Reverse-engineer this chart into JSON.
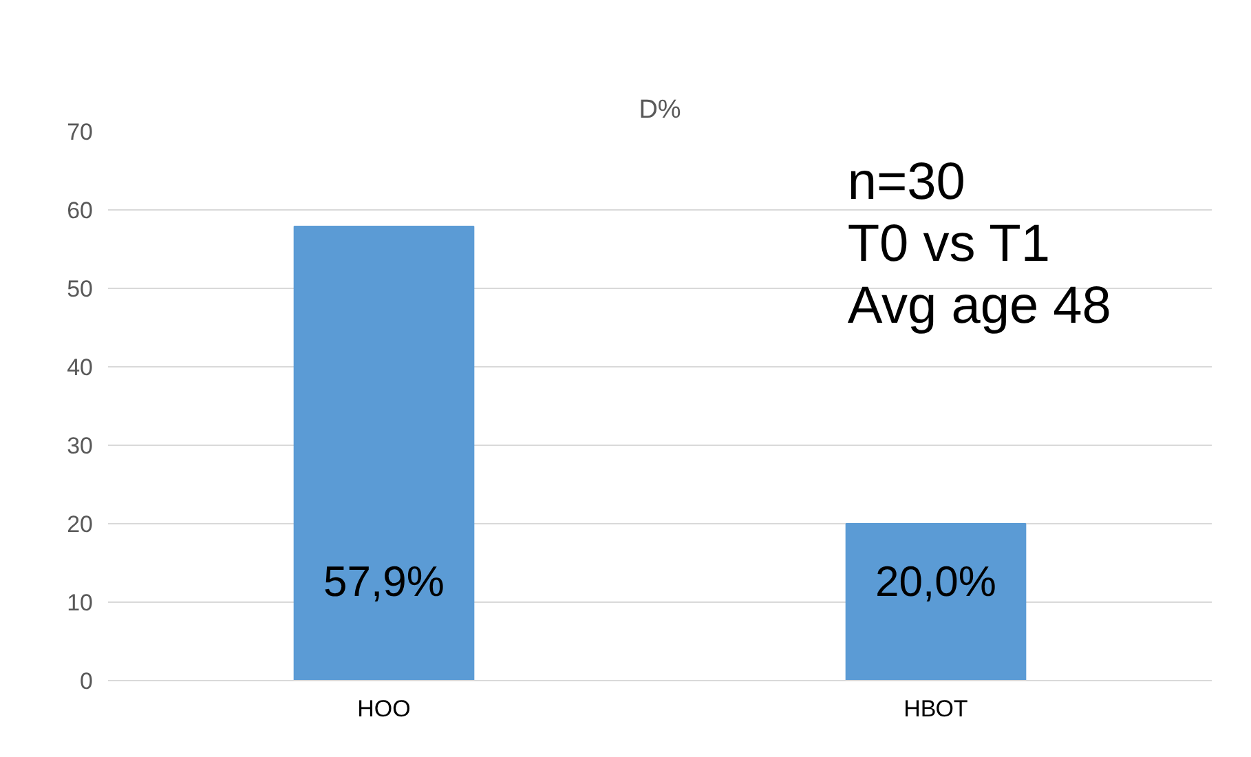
{
  "chart_data": {
    "type": "bar",
    "title": "D%",
    "categories": [
      "НОО",
      "НВОТ"
    ],
    "values": [
      57.9,
      20.0
    ],
    "value_labels": [
      "57,9%",
      "20,0%"
    ],
    "color": "#5b9bd5",
    "ylim": [
      0,
      70
    ],
    "yticks": [
      0,
      10,
      20,
      30,
      40,
      50,
      60,
      70
    ],
    "grid": "y",
    "annotations": [
      "n=30",
      "T0 vs T1",
      "Avg age 48"
    ]
  }
}
